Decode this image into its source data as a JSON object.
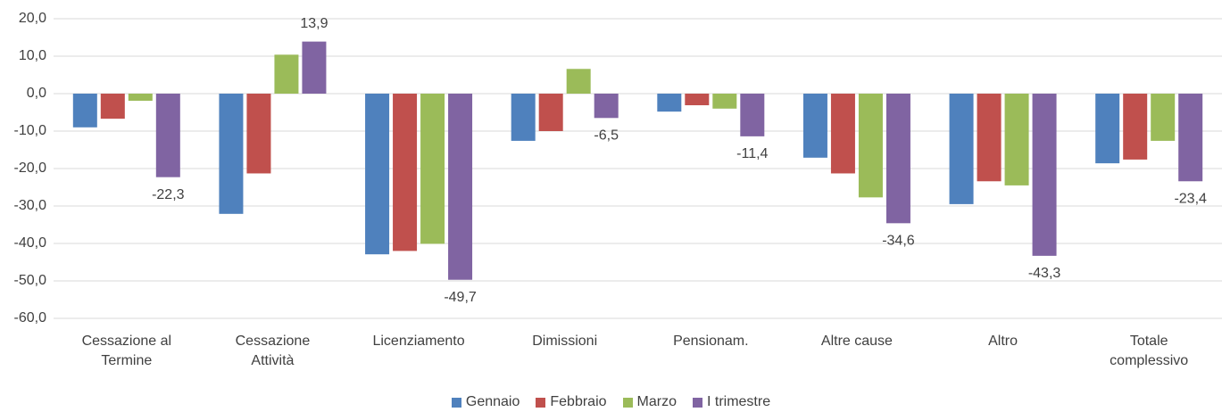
{
  "chart_data": {
    "type": "bar",
    "categories": [
      "Cessazione al Termine",
      "Cessazione Attività",
      "Licenziamento",
      "Dimissioni",
      "Pensionam.",
      "Altre cause",
      "Altro",
      "Totale complessivo"
    ],
    "series": [
      {
        "name": "Gennaio",
        "color": "#4f81bd",
        "values": [
          -9.0,
          -32.1,
          -42.9,
          -12.6,
          -4.8,
          -17.1,
          -29.5,
          -18.6
        ]
      },
      {
        "name": "Febbraio",
        "color": "#c0504d",
        "values": [
          -6.7,
          -21.3,
          -42.0,
          -10.0,
          -3.1,
          -21.3,
          -23.4,
          -17.6
        ]
      },
      {
        "name": "Marzo",
        "color": "#9bbb59",
        "values": [
          -1.9,
          10.4,
          -40.1,
          6.6,
          -4.0,
          -27.7,
          -24.5,
          -12.6
        ]
      },
      {
        "name": "I trimestre",
        "color": "#8064a2",
        "values": [
          -22.3,
          13.9,
          -49.7,
          -6.5,
          -11.4,
          -34.6,
          -43.3,
          -23.4
        ],
        "value_labels": [
          "-22,3",
          "13,9",
          "-49,7",
          "-6,5",
          "-11,4",
          "-34,6",
          "-43,3",
          "-23,4"
        ]
      }
    ],
    "ylim": [
      -60,
      20
    ],
    "yticks": [
      {
        "value": -60,
        "label": "-60,0"
      },
      {
        "value": -50,
        "label": "-50,0"
      },
      {
        "value": -40,
        "label": "-40,0"
      },
      {
        "value": -30,
        "label": "-30,0"
      },
      {
        "value": -20,
        "label": "-20,0"
      },
      {
        "value": -10,
        "label": "-10,0"
      },
      {
        "value": 0,
        "label": "0,0"
      },
      {
        "value": 10,
        "label": "10,0"
      },
      {
        "value": 20,
        "label": "20,0"
      }
    ],
    "grid": true,
    "legend": "bottom"
  }
}
